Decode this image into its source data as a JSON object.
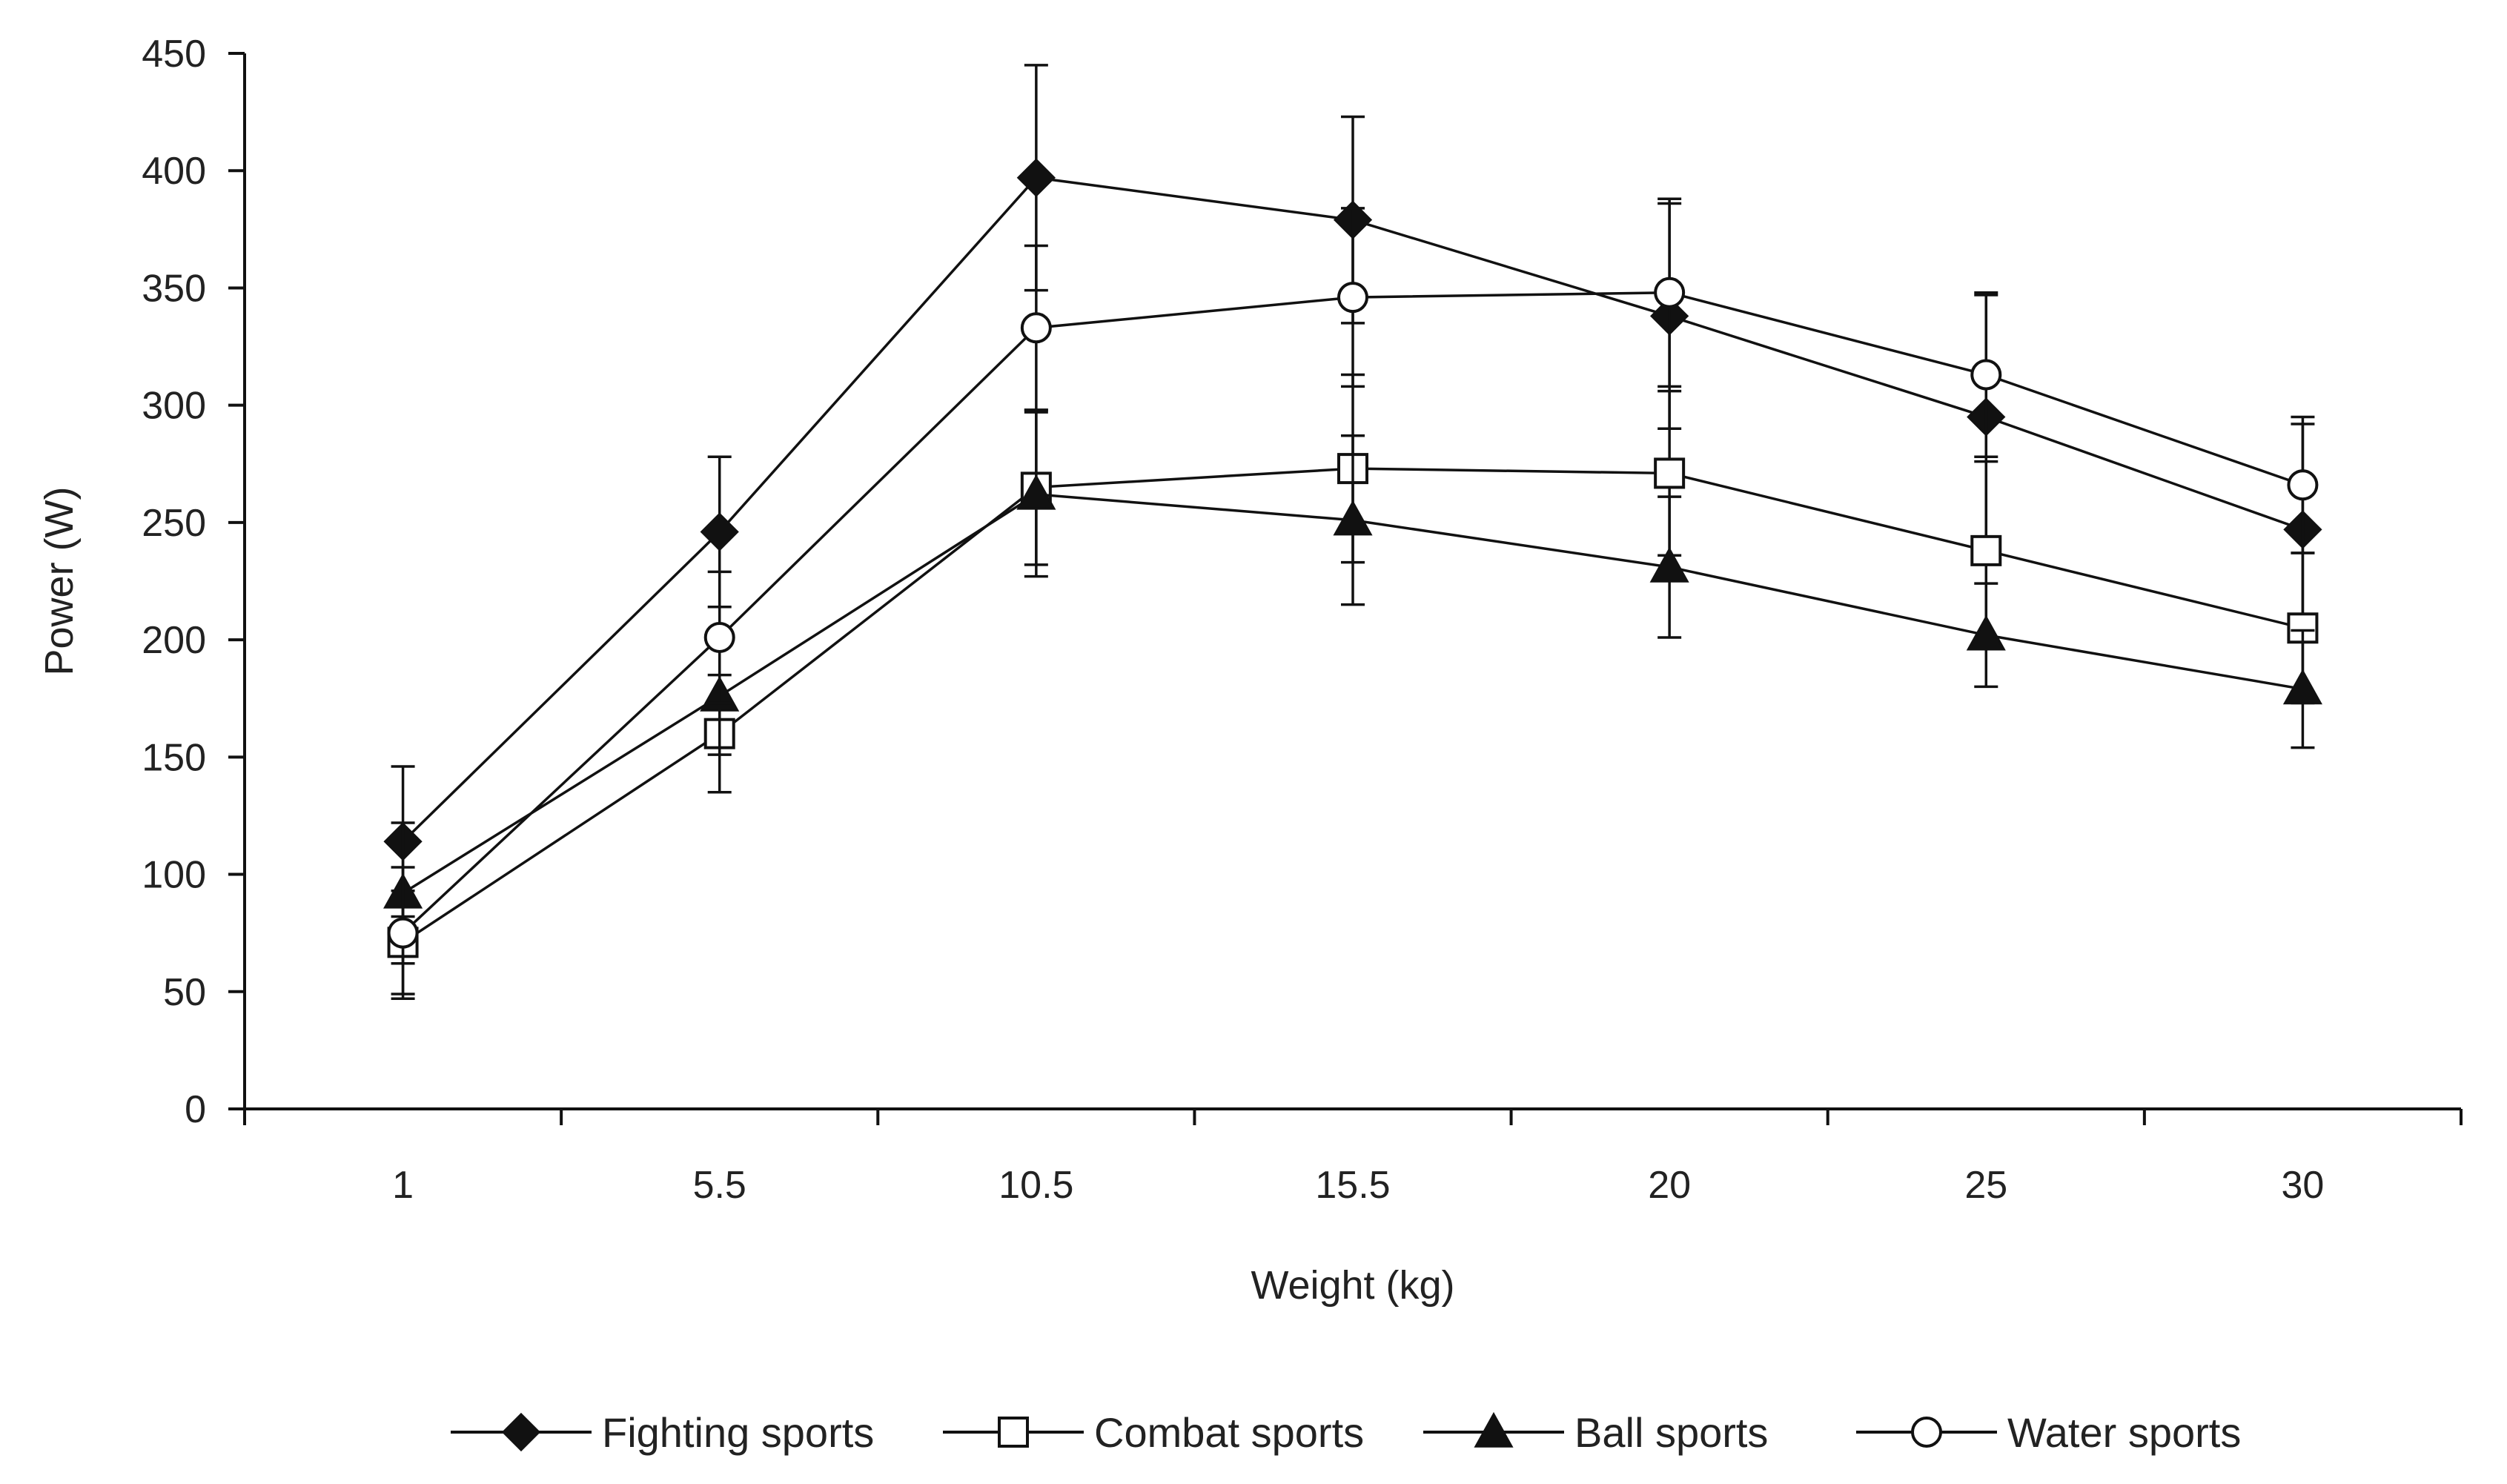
{
  "chart_data": {
    "type": "line",
    "title": "",
    "xlabel": "Weight (kg)",
    "ylabel": "Power (W)",
    "categories": [
      "1",
      "5.5",
      "10.5",
      "15.5",
      "20",
      "25",
      "30"
    ],
    "ylim": [
      0,
      450
    ],
    "yticks": [
      0,
      50,
      100,
      150,
      200,
      250,
      300,
      350,
      400,
      450
    ],
    "grid": false,
    "legend_position": "bottom",
    "series": [
      {
        "name": "Fighting sports",
        "marker": "diamond-filled",
        "values": [
          114,
          246,
          397,
          379,
          338,
          295,
          247
        ],
        "errors": [
          32,
          32,
          48,
          44,
          48,
          52,
          45
        ]
      },
      {
        "name": "Combat sports",
        "marker": "square-open",
        "values": [
          71,
          160,
          265,
          273,
          271,
          238,
          205
        ],
        "errors": [
          22,
          25,
          33,
          40,
          35,
          38,
          32
        ]
      },
      {
        "name": "Ball sports",
        "marker": "triangle-filled",
        "values": [
          92,
          176,
          262,
          251,
          231,
          202,
          179
        ],
        "errors": [
          30,
          25,
          35,
          36,
          30,
          22,
          25
        ]
      },
      {
        "name": "Water sports",
        "marker": "circle-open",
        "values": [
          75,
          201,
          333,
          346,
          348,
          313,
          266
        ],
        "errors": [
          28,
          28,
          35,
          38,
          40,
          35,
          29
        ]
      }
    ]
  }
}
